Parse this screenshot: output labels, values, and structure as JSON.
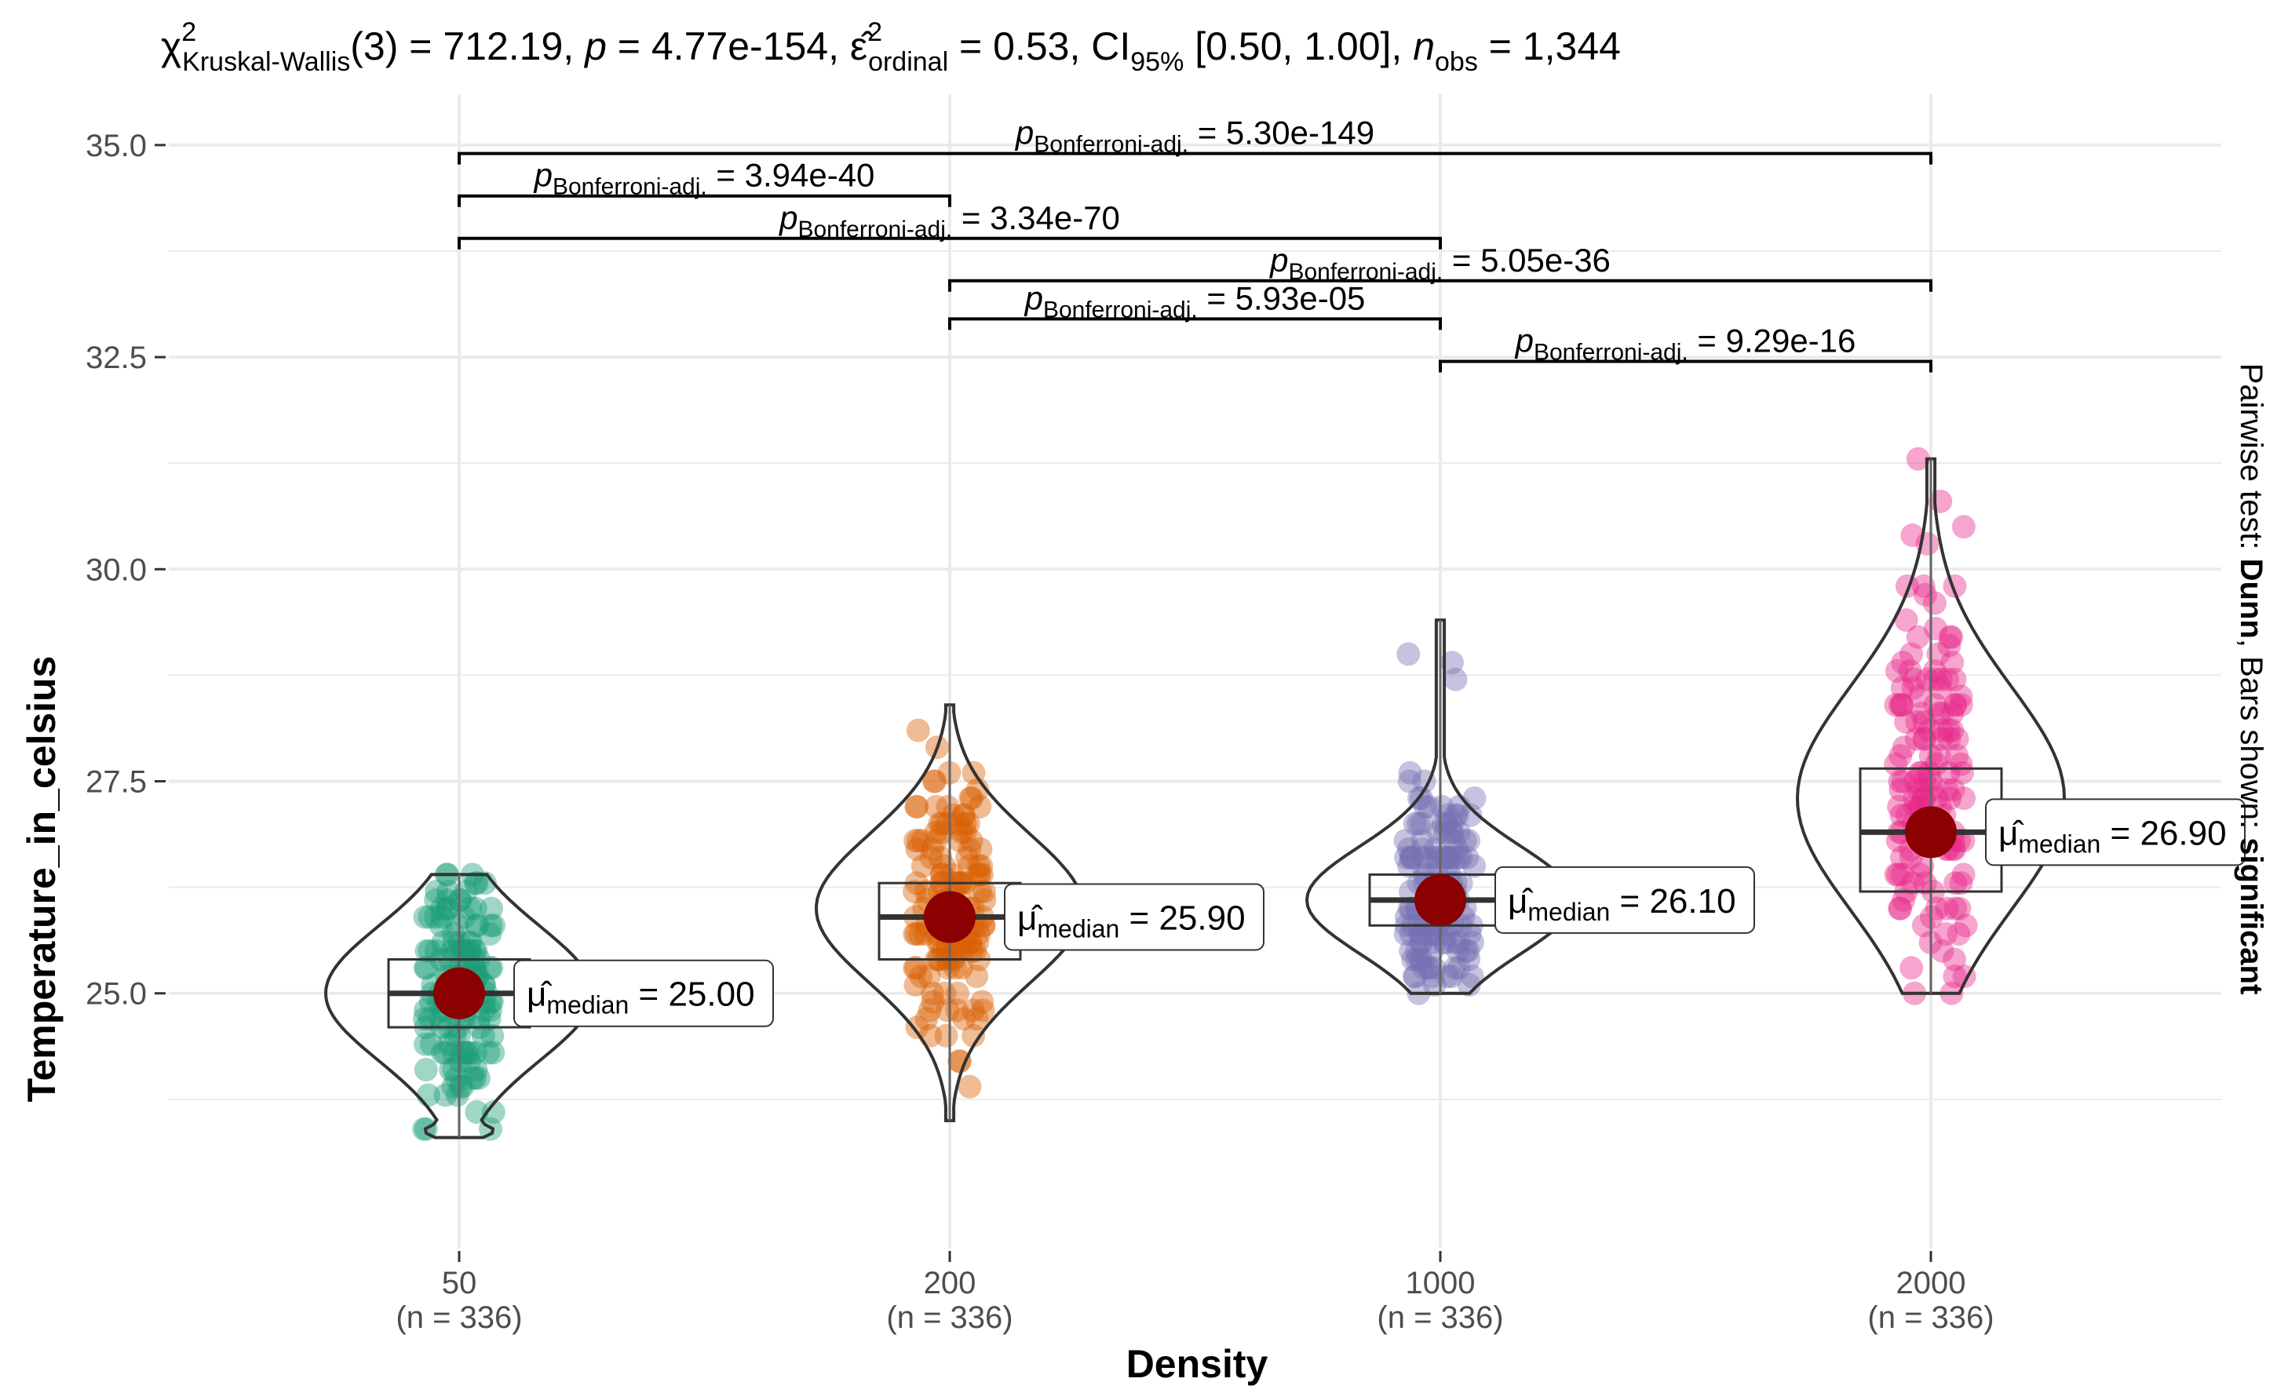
{
  "chart_data": {
    "type": "violin-box-jitter",
    "title": {
      "chi_label": "χ",
      "chi_sup": "2",
      "chi_sub": "Kruskal-Wallis",
      "df": "(3) = 712.19, ",
      "p_label": "p",
      "p_value": " = 4.77e-154, ",
      "eps_label": "ε̂",
      "eps_sup": "2",
      "eps_sub": "ordinal",
      "eps_value": " = 0.53, CI",
      "ci_sub": "95%",
      "ci_value": " [0.50, 1.00], ",
      "n_label": "n",
      "n_sub": "obs",
      "n_value": " = 1,344"
    },
    "xlabel": "Density",
    "ylabel": "Temperature_in_celsius",
    "ylim": [
      22.0,
      35.6
    ],
    "yticks": [
      25.0,
      27.5,
      30.0,
      32.5,
      35.0
    ],
    "ytick_labels": [
      "25.0",
      "27.5",
      "30.0",
      "32.5",
      "35.0"
    ],
    "categories": [
      "50",
      "200",
      "1000",
      "2000"
    ],
    "group_sizes": [
      "(n = 336)",
      "(n = 336)",
      "(n = 336)",
      "(n = 336)"
    ],
    "colors": [
      "#1b9e77",
      "#d95f02",
      "#7570b3",
      "#e7298a"
    ],
    "median_point_color": "#8b0000",
    "groups": [
      {
        "category": "50",
        "median": 25.0,
        "median_label": "25.00",
        "q1": 24.6,
        "q3": 25.4,
        "min": 23.3,
        "max": 26.4,
        "density_peak": 25.0,
        "skew": "bottom-heavy"
      },
      {
        "category": "200",
        "median": 25.9,
        "median_label": "25.90",
        "q1": 25.4,
        "q3": 26.3,
        "min": 23.5,
        "max": 28.4,
        "density_peak": 26.0,
        "skew": "even"
      },
      {
        "category": "1000",
        "median": 26.1,
        "median_label": "26.10",
        "q1": 25.8,
        "q3": 26.4,
        "min": 25.0,
        "max": 29.4,
        "density_peak": 26.1,
        "skew": "low-heavy"
      },
      {
        "category": "2000",
        "median": 26.9,
        "median_label": "26.90",
        "q1": 26.2,
        "q3": 27.65,
        "min": 25.0,
        "max": 31.3,
        "density_peak": 27.3,
        "skew": "wide"
      }
    ],
    "median_label_prefix": "μ̂",
    "median_label_sub": "median",
    "pairwise": [
      {
        "from": "50",
        "to": "2000",
        "y": 34.9,
        "p_value": "5.30e-149"
      },
      {
        "from": "50",
        "to": "200",
        "y": 34.4,
        "p_value": "3.94e-40"
      },
      {
        "from": "50",
        "to": "1000",
        "y": 33.9,
        "p_value": "3.34e-70"
      },
      {
        "from": "200",
        "to": "2000",
        "y": 33.4,
        "p_value": "5.05e-36"
      },
      {
        "from": "200",
        "to": "1000",
        "y": 32.95,
        "p_value": "5.93e-05"
      },
      {
        "from": "1000",
        "to": "2000",
        "y": 32.45,
        "p_value": "9.29e-16"
      }
    ],
    "pairwise_p_label": "p",
    "pairwise_sub": "Bonferroni-adj.",
    "side_caption": {
      "prefix": "Pairwise test: ",
      "test": "Dunn",
      "middle": ", Bars shown: ",
      "shown": "significant"
    }
  }
}
